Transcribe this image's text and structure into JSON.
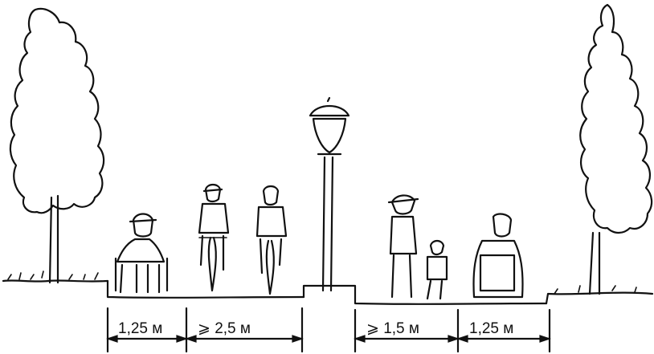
{
  "dimensions": [
    {
      "label": "1,25 м"
    },
    {
      "label": "⩾ 2,5 м"
    },
    {
      "label": "⩾ 1,5 м"
    },
    {
      "label": "1,25 м"
    }
  ]
}
